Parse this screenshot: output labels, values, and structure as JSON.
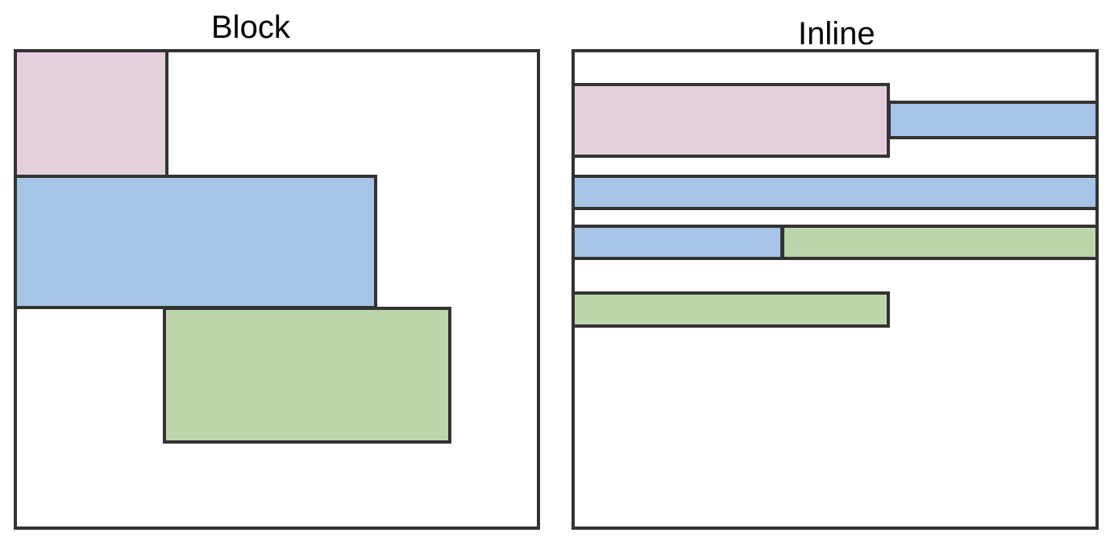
{
  "titles": {
    "block": "Block",
    "inline": "Inline"
  },
  "colors": {
    "pink": "#e4d0dc",
    "blue": "#a6c4e6",
    "green": "#bcd5ab",
    "border": "#333333"
  },
  "block_panel": {
    "boxes": [
      {
        "color": "pink"
      },
      {
        "color": "blue"
      },
      {
        "color": "green"
      }
    ]
  },
  "inline_panel": {
    "boxes": [
      {
        "color": "pink"
      },
      {
        "color": "blue"
      },
      {
        "color": "blue"
      },
      {
        "color": "blue"
      },
      {
        "color": "green"
      },
      {
        "color": "green"
      }
    ]
  }
}
